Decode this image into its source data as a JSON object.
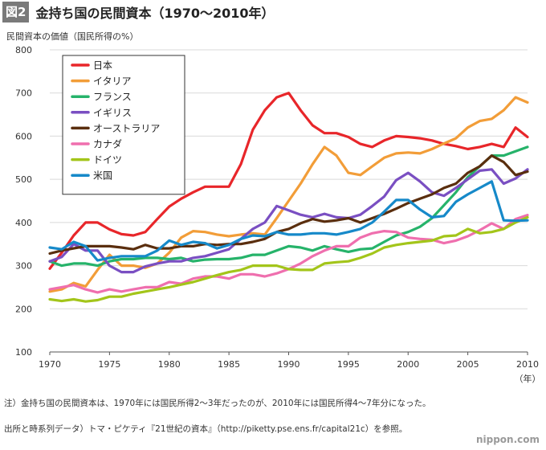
{
  "header": {
    "badge": "図2",
    "title": "金持ち国の民間資本（1970〜2010年）"
  },
  "unit_label": "民間資本の価値（国民所得の%）",
  "chart_data": {
    "type": "line",
    "ylim": [
      100,
      800
    ],
    "yticks": [
      100,
      200,
      300,
      400,
      500,
      600,
      700,
      800
    ],
    "xlim": [
      1970,
      2010
    ],
    "xticks": [
      1970,
      1975,
      1980,
      1985,
      1990,
      1995,
      2000,
      2005,
      2010
    ],
    "xunit": "（年）",
    "legend_position": "top-left",
    "series": [
      {
        "name": "日本",
        "color": "#e8262a",
        "x": [
          1970,
          1971,
          1972,
          1973,
          1974,
          1975,
          1976,
          1977,
          1978,
          1979,
          1980,
          1981,
          1982,
          1983,
          1984,
          1985,
          1986,
          1987,
          1988,
          1989,
          1990,
          1991,
          1992,
          1993,
          1994,
          1995,
          1996,
          1997,
          1998,
          1999,
          2000,
          2001,
          2002,
          2003,
          2004,
          2005,
          2006,
          2007,
          2008,
          2009,
          2010
        ],
        "values": [
          293,
          330,
          370,
          400,
          400,
          384,
          373,
          370,
          378,
          408,
          437,
          455,
          470,
          483,
          483,
          483,
          535,
          615,
          660,
          690,
          700,
          660,
          625,
          607,
          607,
          598,
          582,
          575,
          590,
          600,
          598,
          595,
          590,
          582,
          577,
          570,
          575,
          582,
          575,
          620,
          598
        ]
      },
      {
        "name": "イタリア",
        "color": "#f29d38",
        "x": [
          1970,
          1971,
          1972,
          1973,
          1974,
          1975,
          1976,
          1977,
          1978,
          1979,
          1980,
          1981,
          1982,
          1983,
          1984,
          1985,
          1986,
          1987,
          1988,
          1989,
          1990,
          1991,
          1992,
          1993,
          1994,
          1995,
          1996,
          1997,
          1998,
          1999,
          2000,
          2001,
          2002,
          2003,
          2004,
          2005,
          2006,
          2007,
          2008,
          2009,
          2010
        ],
        "values": [
          240,
          245,
          260,
          252,
          290,
          325,
          300,
          300,
          295,
          305,
          330,
          365,
          380,
          378,
          372,
          368,
          372,
          375,
          372,
          410,
          450,
          490,
          535,
          575,
          555,
          515,
          510,
          530,
          550,
          560,
          562,
          560,
          570,
          583,
          595,
          620,
          635,
          640,
          660,
          690,
          678
        ]
      },
      {
        "name": "フランス",
        "color": "#26b36a",
        "x": [
          1970,
          1971,
          1972,
          1973,
          1974,
          1975,
          1976,
          1977,
          1978,
          1979,
          1980,
          1981,
          1982,
          1983,
          1984,
          1985,
          1986,
          1987,
          1988,
          1989,
          1990,
          1991,
          1992,
          1993,
          1994,
          1995,
          1996,
          1997,
          1998,
          1999,
          2000,
          2001,
          2002,
          2003,
          2004,
          2005,
          2006,
          2007,
          2008,
          2009,
          2010
        ],
        "values": [
          310,
          300,
          305,
          305,
          300,
          310,
          315,
          315,
          318,
          318,
          315,
          318,
          310,
          314,
          315,
          315,
          318,
          325,
          325,
          335,
          345,
          342,
          335,
          345,
          338,
          332,
          338,
          340,
          355,
          370,
          378,
          390,
          410,
          440,
          470,
          505,
          530,
          555,
          555,
          565,
          575
        ]
      },
      {
        "name": "イギリス",
        "color": "#7a4fc2",
        "x": [
          1970,
          1971,
          1972,
          1973,
          1974,
          1975,
          1976,
          1977,
          1978,
          1979,
          1980,
          1981,
          1982,
          1983,
          1984,
          1985,
          1986,
          1987,
          1988,
          1989,
          1990,
          1991,
          1992,
          1993,
          1994,
          1995,
          1996,
          1997,
          1998,
          1999,
          2000,
          2001,
          2002,
          2003,
          2004,
          2005,
          2006,
          2007,
          2008,
          2009,
          2010
        ],
        "values": [
          310,
          320,
          350,
          335,
          335,
          300,
          285,
          285,
          298,
          305,
          310,
          310,
          318,
          322,
          330,
          338,
          362,
          385,
          400,
          438,
          428,
          418,
          412,
          420,
          412,
          410,
          418,
          438,
          460,
          498,
          515,
          495,
          470,
          462,
          480,
          500,
          520,
          523,
          490,
          502,
          523
        ]
      },
      {
        "name": "オーストラリア",
        "color": "#5a2e0e",
        "x": [
          1970,
          1971,
          1972,
          1973,
          1974,
          1975,
          1976,
          1977,
          1978,
          1979,
          1980,
          1981,
          1982,
          1983,
          1984,
          1985,
          1986,
          1987,
          1988,
          1989,
          1990,
          1991,
          1992,
          1993,
          1994,
          1995,
          1996,
          1997,
          1998,
          1999,
          2000,
          2001,
          2002,
          2003,
          2004,
          2005,
          2006,
          2007,
          2008,
          2009,
          2010
        ],
        "values": [
          328,
          335,
          340,
          345,
          345,
          345,
          342,
          338,
          348,
          340,
          340,
          345,
          345,
          350,
          348,
          350,
          350,
          355,
          362,
          378,
          385,
          398,
          408,
          402,
          405,
          410,
          400,
          410,
          420,
          432,
          445,
          455,
          465,
          480,
          490,
          515,
          530,
          555,
          540,
          510,
          518
        ]
      },
      {
        "name": "カナダ",
        "color": "#ef6fae",
        "x": [
          1970,
          1971,
          1972,
          1973,
          1974,
          1975,
          1976,
          1977,
          1978,
          1979,
          1980,
          1981,
          1982,
          1983,
          1984,
          1985,
          1986,
          1987,
          1988,
          1989,
          1990,
          1991,
          1992,
          1993,
          1994,
          1995,
          1996,
          1997,
          1998,
          1999,
          2000,
          2001,
          2002,
          2003,
          2004,
          2005,
          2006,
          2007,
          2008,
          2009,
          2010
        ],
        "values": [
          245,
          250,
          255,
          245,
          238,
          245,
          240,
          245,
          250,
          250,
          262,
          258,
          270,
          275,
          275,
          270,
          280,
          280,
          275,
          282,
          292,
          305,
          322,
          335,
          345,
          345,
          365,
          375,
          380,
          378,
          365,
          362,
          360,
          352,
          358,
          368,
          382,
          398,
          385,
          408,
          417
        ]
      },
      {
        "name": "ドイツ",
        "color": "#a3c51a",
        "x": [
          1970,
          1971,
          1972,
          1973,
          1974,
          1975,
          1976,
          1977,
          1978,
          1979,
          1980,
          1981,
          1982,
          1983,
          1984,
          1985,
          1986,
          1987,
          1988,
          1989,
          1990,
          1991,
          1992,
          1993,
          1994,
          1995,
          1996,
          1997,
          1998,
          1999,
          2000,
          2001,
          2002,
          2003,
          2004,
          2005,
          2006,
          2007,
          2008,
          2009,
          2010
        ],
        "values": [
          222,
          218,
          222,
          217,
          220,
          228,
          228,
          235,
          240,
          245,
          250,
          256,
          262,
          270,
          278,
          285,
          290,
          300,
          300,
          300,
          292,
          290,
          290,
          305,
          308,
          310,
          318,
          328,
          342,
          348,
          352,
          355,
          358,
          368,
          370,
          385,
          375,
          378,
          385,
          400,
          412
        ]
      },
      {
        "name": "米国",
        "color": "#1689c9",
        "x": [
          1970,
          1971,
          1972,
          1973,
          1974,
          1975,
          1976,
          1977,
          1978,
          1979,
          1980,
          1981,
          1982,
          1983,
          1984,
          1985,
          1986,
          1987,
          1988,
          1989,
          1990,
          1991,
          1992,
          1993,
          1994,
          1995,
          1996,
          1997,
          1998,
          1999,
          2000,
          2001,
          2002,
          2003,
          2004,
          2005,
          2006,
          2007,
          2008,
          2009,
          2010
        ],
        "values": [
          342,
          338,
          355,
          345,
          312,
          318,
          322,
          322,
          322,
          335,
          358,
          348,
          355,
          352,
          340,
          348,
          362,
          370,
          368,
          378,
          372,
          372,
          375,
          375,
          372,
          378,
          385,
          400,
          425,
          452,
          452,
          430,
          412,
          415,
          448,
          465,
          480,
          495,
          405,
          404,
          405
        ]
      }
    ]
  },
  "note": "注）金持ち国の民間資本は、1970年には国民所得2〜3年だったのが、2010年には国民所得4〜7年分になった。",
  "source": "出所と時系列データ）トマ・ピケティ『21世紀の資本』（http://piketty.pse.ens.fr/capital21c）を参照。",
  "logo": "nippon.com"
}
